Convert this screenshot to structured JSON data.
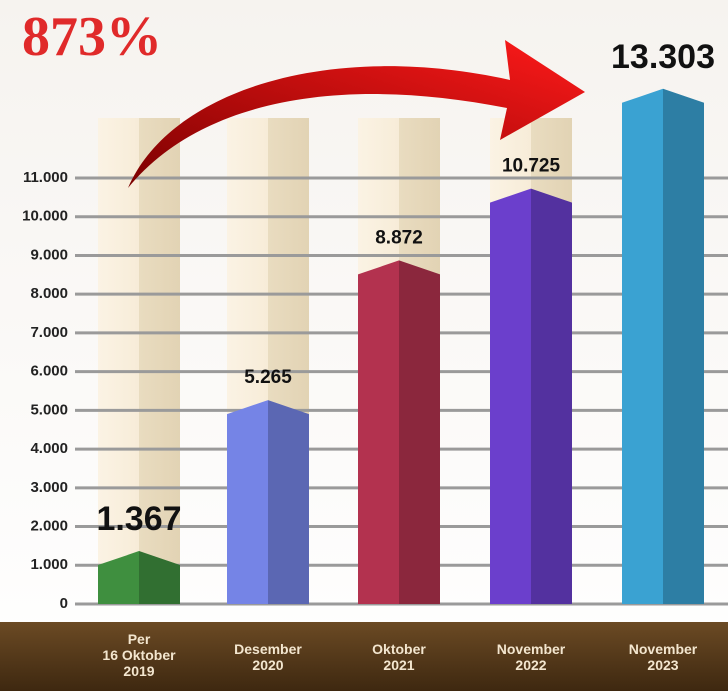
{
  "chart_data": {
    "type": "bar",
    "title": "873%",
    "categories": [
      "Per\n16 Oktober\n2019",
      "Desember\n2020",
      "Oktober\n2021",
      "November\n2022",
      "November\n2023"
    ],
    "values": [
      1367,
      5265,
      8872,
      10725,
      13303
    ],
    "value_labels": [
      "1.367",
      "5.265",
      "8.872",
      "10.725",
      "13.303"
    ],
    "colors": [
      "#3f8f3f",
      "#7584e6",
      "#b3324f",
      "#6b3fcc",
      "#3aa2d2"
    ],
    "ylim": [
      0,
      11000
    ],
    "yticks": [
      0,
      {
        "value": 1000,
        "label": "1.000"
      },
      {
        "value": 2000,
        "label": "2.000"
      },
      {
        "value": 3000,
        "label": "3.000"
      },
      {
        "value": 4000,
        "label": "4.000"
      },
      {
        "value": 5000,
        "label": "5.000"
      },
      {
        "value": 6000,
        "label": "6.000"
      },
      {
        "value": 7000,
        "label": "7.000"
      },
      {
        "value": 8000,
        "label": "8.000"
      },
      {
        "value": 9000,
        "label": "9.000"
      },
      {
        "value": 10000,
        "label": "10.000"
      },
      {
        "value": 11000,
        "label": "11.000"
      }
    ],
    "grid": true
  }
}
